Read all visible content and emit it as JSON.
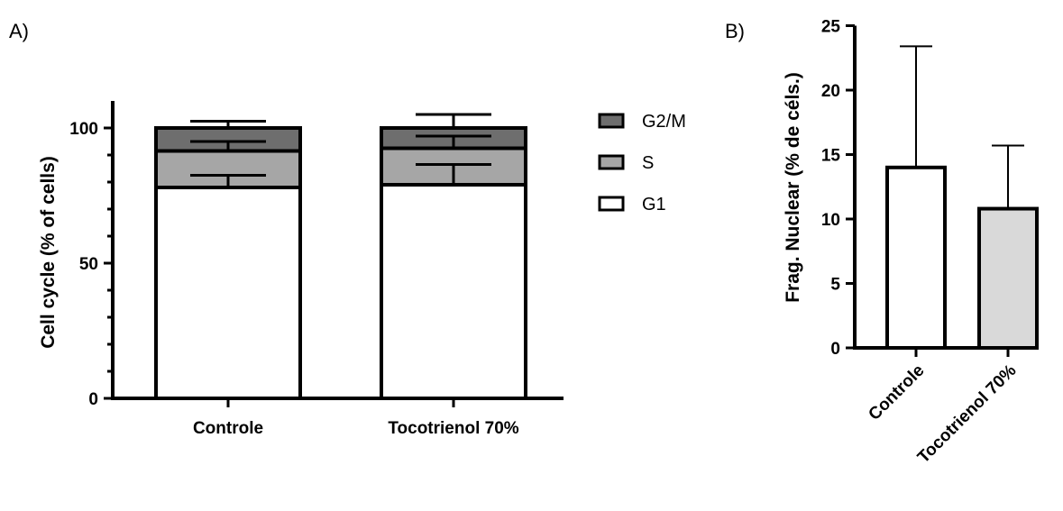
{
  "chart_data": [
    {
      "panel": "A)",
      "type": "bar",
      "stacked": true,
      "ylabel": "Cell cycle (% of cells)",
      "xlabel": "",
      "ylim": [
        0,
        110
      ],
      "yticks": [
        0,
        50,
        100
      ],
      "categories": [
        "Controle",
        "Tocotrienol 70%"
      ],
      "series": [
        {
          "name": "G1",
          "color": "#ffffff",
          "values": [
            78,
            79
          ],
          "errors": [
            4.5,
            7.5
          ]
        },
        {
          "name": "S",
          "color": "#a6a6a6",
          "values": [
            13.5,
            13.5
          ],
          "errors": [
            3.5,
            4.5
          ]
        },
        {
          "name": "G2/M",
          "color": "#6e6e6e",
          "values": [
            8.5,
            7.5
          ],
          "errors": [
            2.5,
            5
          ]
        }
      ],
      "legend": {
        "position": "right",
        "order": [
          "G2/M",
          "S",
          "G1"
        ]
      }
    },
    {
      "panel": "B)",
      "type": "bar",
      "ylabel": "Frag. Nuclear (% de céls.)",
      "xlabel": "",
      "ylim": [
        0,
        25
      ],
      "yticks": [
        0,
        5,
        10,
        15,
        20,
        25
      ],
      "categories": [
        "Controle",
        "Tocotrienol 70%"
      ],
      "values": [
        14,
        10.8
      ],
      "errors": [
        9.4,
        4.9
      ],
      "colors": [
        "#ffffff",
        "#d9d9d9"
      ]
    }
  ]
}
